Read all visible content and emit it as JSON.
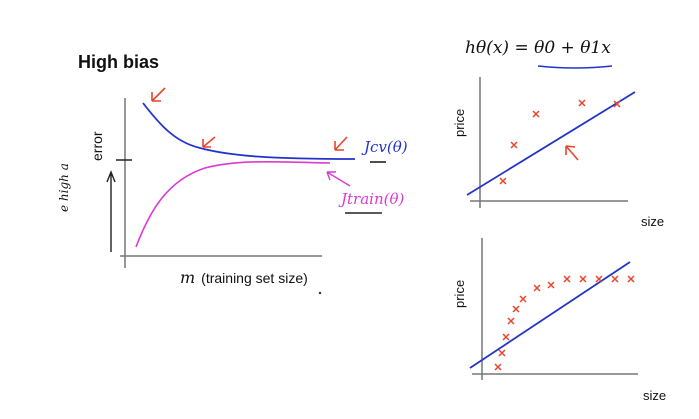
{
  "slide": {
    "title": "High bias",
    "hypothesis": "hθ(x) = θ0 + θ1x"
  },
  "learning_curve": {
    "y_label": "error",
    "x_label_symbol": "m",
    "x_label_text": "(training set size)",
    "cv_curve_label": "Jcv(θ)",
    "train_curve_label": "Jtrain(θ)",
    "handwritten_note": "e high a"
  },
  "plots": [
    {
      "y_label": "price",
      "x_label": "size"
    },
    {
      "y_label": "price",
      "x_label": "size"
    }
  ],
  "colors": {
    "blue": "#2233cc",
    "pink": "#d93bd3",
    "red": "#e8452c",
    "axis": "#777777"
  }
}
